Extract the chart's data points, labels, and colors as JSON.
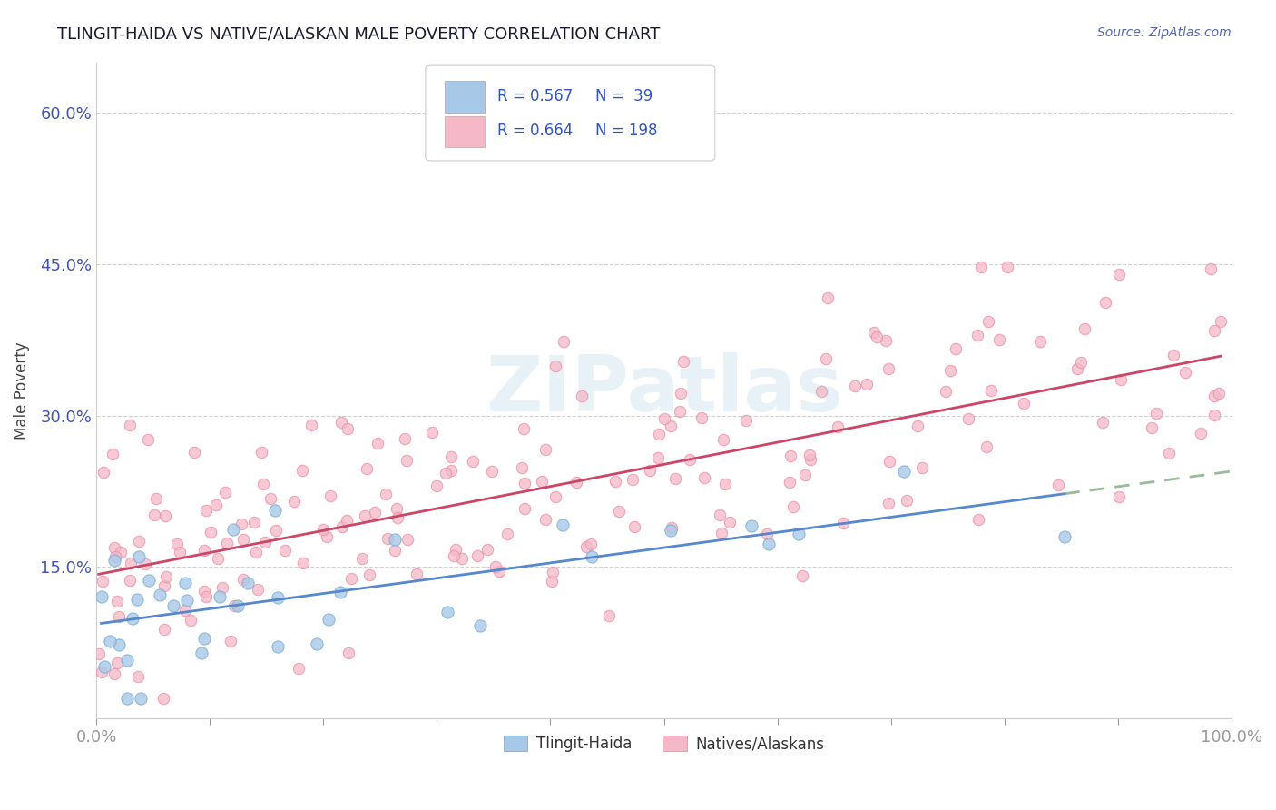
{
  "title": "TLINGIT-HAIDA VS NATIVE/ALASKAN MALE POVERTY CORRELATION CHART",
  "source": "Source: ZipAtlas.com",
  "ylabel": "Male Poverty",
  "xlim": [
    0.0,
    1.0
  ],
  "ylim": [
    0.0,
    0.65
  ],
  "blue_color": "#a8c8e8",
  "blue_edge_color": "#7aafd4",
  "pink_color": "#f4b8c8",
  "pink_edge_color": "#e890a8",
  "blue_line_color": "#5588cc",
  "pink_line_color": "#cc4466",
  "dashed_line_color": "#99bb99",
  "legend_text_color": "#3355bb",
  "background_color": "#ffffff",
  "grid_color": "#d0d0d0",
  "title_color": "#1a1a2e",
  "source_color": "#5566aa",
  "watermark_color": "#d8e8f0",
  "yticks": [
    0.0,
    0.15,
    0.3,
    0.45,
    0.6
  ],
  "blue_n": 39,
  "pink_n": 198,
  "blue_seed": 77,
  "pink_seed": 42
}
